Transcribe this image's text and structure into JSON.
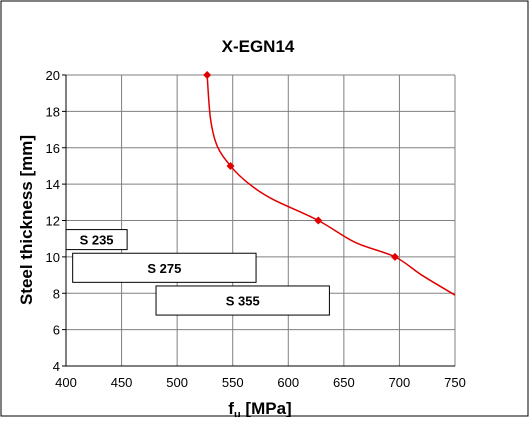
{
  "chart_data": {
    "type": "line",
    "title": "X-EGN14",
    "xlabel_main": "f",
    "xlabel_sub": "u",
    "xlabel_rest": " [MPa]",
    "ylabel": "Steel thickness [mm]",
    "xlim": [
      400,
      750
    ],
    "ylim": [
      4,
      20
    ],
    "xticks": [
      400,
      450,
      500,
      550,
      600,
      650,
      700,
      750
    ],
    "yticks": [
      4,
      6,
      8,
      10,
      12,
      14,
      16,
      18,
      20
    ],
    "grid": true,
    "line_color": "#e00000",
    "points": [
      {
        "x": 527,
        "y": 20
      },
      {
        "x": 548,
        "y": 15
      },
      {
        "x": 627,
        "y": 12
      },
      {
        "x": 696,
        "y": 10
      }
    ],
    "curve": [
      {
        "x": 527,
        "y": 20
      },
      {
        "x": 530,
        "y": 17.6
      },
      {
        "x": 536,
        "y": 16.1
      },
      {
        "x": 548,
        "y": 15
      },
      {
        "x": 563,
        "y": 14.1
      },
      {
        "x": 585,
        "y": 13.2
      },
      {
        "x": 627,
        "y": 12
      },
      {
        "x": 660,
        "y": 10.8
      },
      {
        "x": 696,
        "y": 10
      },
      {
        "x": 720,
        "y": 9
      },
      {
        "x": 750,
        "y": 7.9
      }
    ],
    "steel_grades": [
      {
        "name": "S 235",
        "x_from": 400,
        "x_to": 455,
        "y_from": 10.4,
        "y_to": 11.5
      },
      {
        "name": "S 275",
        "x_from": 406,
        "x_to": 571,
        "y_from": 8.6,
        "y_to": 10.2
      },
      {
        "name": "S 355",
        "x_from": 481,
        "x_to": 637,
        "y_from": 6.8,
        "y_to": 8.4
      }
    ]
  }
}
